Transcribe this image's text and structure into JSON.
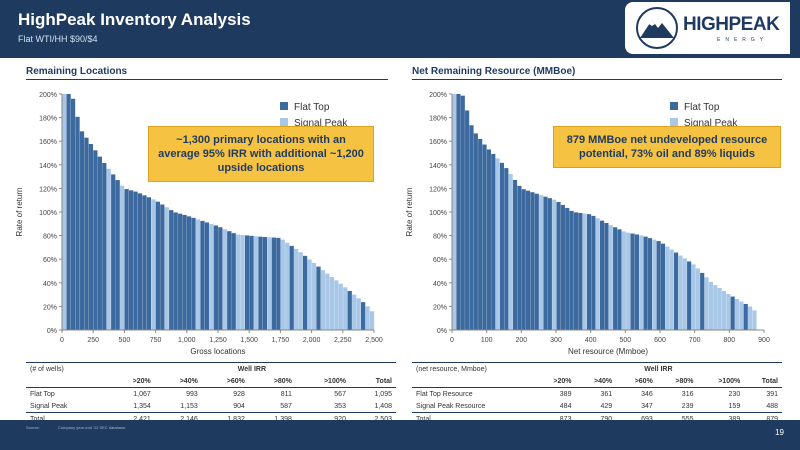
{
  "header": {
    "title": "HighPeak Inventory Analysis",
    "subtitle": "Flat WTI/HH $90/$4",
    "logo_main": "HIGHPEAK",
    "logo_sub": "ENERGY"
  },
  "left": {
    "section_title": "Remaining Locations",
    "callout": "~1,300 primary locations with an average 95% IRR with additional ~1,200 upside locations",
    "table": {
      "unit_label": "(# of wells)",
      "group_header": "Well IRR",
      "columns": [
        ">20%",
        ">40%",
        ">60%",
        ">80%",
        ">100%",
        "Total"
      ],
      "rows": [
        {
          "label": "Flat Top",
          "values": [
            "1,067",
            "993",
            "928",
            "811",
            "567",
            "1,095"
          ]
        },
        {
          "label": "Signal Peak",
          "values": [
            "1,354",
            "1,153",
            "904",
            "587",
            "353",
            "1,408"
          ]
        },
        {
          "label": "Total",
          "values": [
            "2,421",
            "2,146",
            "1,832",
            "1,398",
            "920",
            "2,503"
          ]
        }
      ]
    }
  },
  "right": {
    "section_title": "Net Remaining Resource (MMBoe)",
    "callout": "879 MMBoe net undeveloped resource potential, 73% oil and 89% liquids",
    "table": {
      "unit_label": "(net resource, Mmboe)",
      "group_header": "Well IRR",
      "columns": [
        ">20%",
        ">40%",
        ">60%",
        ">80%",
        ">100%",
        "Total"
      ],
      "rows": [
        {
          "label": "Flat Top Resource",
          "values": [
            "389",
            "361",
            "346",
            "316",
            "230",
            "391"
          ]
        },
        {
          "label": "Signal Peak Resource",
          "values": [
            "484",
            "429",
            "347",
            "239",
            "159",
            "488"
          ]
        },
        {
          "label": "Total",
          "values": [
            "873",
            "790",
            "693",
            "555",
            "389",
            "879"
          ]
        }
      ]
    }
  },
  "footer": {
    "source_label": "Source:",
    "source_text": "Company year-end '22 SEC database.",
    "page": "19"
  },
  "colors": {
    "flat_top": "#3d6a9e",
    "signal_peak": "#a9c8e8",
    "navy": "#1f3a5f",
    "callout": "#f5c242"
  },
  "chart_data": [
    {
      "type": "bar",
      "xlabel": "Gross locations",
      "ylabel": "Rate of return",
      "xlim": [
        0,
        2500
      ],
      "ylim": [
        0,
        200
      ],
      "xticks": [
        "0",
        "250",
        "500",
        "750",
        "1,000",
        "1,250",
        "1,500",
        "1,750",
        "2,000",
        "2,250",
        "2,500"
      ],
      "yticks": [
        "0%",
        "20%",
        "40%",
        "60%",
        "80%",
        "100%",
        "120%",
        "140%",
        "160%",
        "180%",
        "200%"
      ],
      "legend": [
        "Flat Top",
        "Signal Peak"
      ],
      "legend_position": "top-right",
      "grid": false,
      "curve": [
        {
          "x": 0,
          "y": 200
        },
        {
          "x": 80,
          "y": 200
        },
        {
          "x": 150,
          "y": 170
        },
        {
          "x": 250,
          "y": 155
        },
        {
          "x": 350,
          "y": 140
        },
        {
          "x": 500,
          "y": 120
        },
        {
          "x": 600,
          "y": 117
        },
        {
          "x": 750,
          "y": 110
        },
        {
          "x": 900,
          "y": 100
        },
        {
          "x": 1000,
          "y": 97
        },
        {
          "x": 1250,
          "y": 88
        },
        {
          "x": 1400,
          "y": 81
        },
        {
          "x": 1600,
          "y": 79
        },
        {
          "x": 1750,
          "y": 78
        },
        {
          "x": 1900,
          "y": 67
        },
        {
          "x": 2100,
          "y": 50
        },
        {
          "x": 2250,
          "y": 38
        },
        {
          "x": 2400,
          "y": 25
        },
        {
          "x": 2480,
          "y": 17
        },
        {
          "x": 2503,
          "y": 12
        }
      ],
      "signal_peak_share": [
        {
          "x": 0,
          "share": 0.08
        },
        {
          "x": 500,
          "share": 0.12
        },
        {
          "x": 1000,
          "share": 0.2
        },
        {
          "x": 1500,
          "share": 0.35
        },
        {
          "x": 2000,
          "share": 0.65
        },
        {
          "x": 2503,
          "share": 0.85
        }
      ]
    },
    {
      "type": "bar",
      "xlabel": "Net resource (Mmboe)",
      "ylabel": "Rate of return",
      "xlim": [
        0,
        900
      ],
      "ylim": [
        0,
        200
      ],
      "xticks": [
        "0",
        "100",
        "200",
        "300",
        "400",
        "500",
        "600",
        "700",
        "800",
        "900"
      ],
      "yticks": [
        "0%",
        "20%",
        "40%",
        "60%",
        "80%",
        "100%",
        "120%",
        "140%",
        "160%",
        "180%",
        "200%"
      ],
      "legend": [
        "Flat Top",
        "Signal Peak"
      ],
      "legend_position": "top-right",
      "grid": false,
      "curve": [
        {
          "x": 0,
          "y": 200
        },
        {
          "x": 30,
          "y": 200
        },
        {
          "x": 60,
          "y": 170
        },
        {
          "x": 100,
          "y": 155
        },
        {
          "x": 150,
          "y": 140
        },
        {
          "x": 200,
          "y": 120
        },
        {
          "x": 250,
          "y": 115
        },
        {
          "x": 300,
          "y": 110
        },
        {
          "x": 350,
          "y": 100
        },
        {
          "x": 400,
          "y": 98
        },
        {
          "x": 450,
          "y": 90
        },
        {
          "x": 500,
          "y": 83
        },
        {
          "x": 550,
          "y": 80
        },
        {
          "x": 600,
          "y": 75
        },
        {
          "x": 650,
          "y": 65
        },
        {
          "x": 700,
          "y": 55
        },
        {
          "x": 750,
          "y": 40
        },
        {
          "x": 800,
          "y": 30
        },
        {
          "x": 860,
          "y": 20
        },
        {
          "x": 879,
          "y": 15
        }
      ],
      "signal_peak_share": [
        {
          "x": 0,
          "share": 0.08
        },
        {
          "x": 200,
          "share": 0.12
        },
        {
          "x": 400,
          "share": 0.2
        },
        {
          "x": 600,
          "share": 0.45
        },
        {
          "x": 750,
          "share": 0.7
        },
        {
          "x": 879,
          "share": 0.85
        }
      ]
    }
  ]
}
